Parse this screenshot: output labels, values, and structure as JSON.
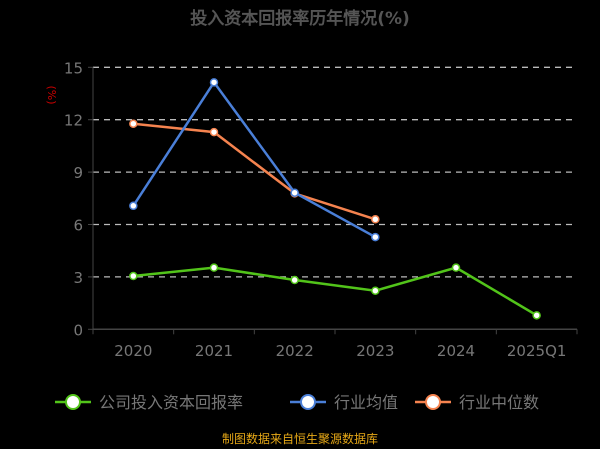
{
  "chart_data": {
    "type": "line",
    "title": "投入资本回报率历年情况(%)",
    "ylabel": "(%)",
    "categories": [
      "2020",
      "2021",
      "2022",
      "2023",
      "2024",
      "2025Q1"
    ],
    "yticks": [
      0,
      3,
      6,
      9,
      12,
      15
    ],
    "ylim": [
      0,
      15
    ],
    "grid": true,
    "legend_placement": "bottom",
    "series": [
      {
        "name": "公司投入资本回报率",
        "color": "#52c41a",
        "values": [
          3.05,
          3.53,
          2.82,
          2.21,
          3.53,
          0.8
        ]
      },
      {
        "name": "行业均值",
        "color": "#4a7fd8",
        "values": [
          7.07,
          14.14,
          7.82,
          5.28,
          null,
          null
        ]
      },
      {
        "name": "行业中位数",
        "color": "#f5834f",
        "values": [
          11.77,
          11.29,
          7.78,
          6.3,
          null,
          null
        ]
      }
    ]
  },
  "footer": "制图数据来自恒生聚源数据库"
}
